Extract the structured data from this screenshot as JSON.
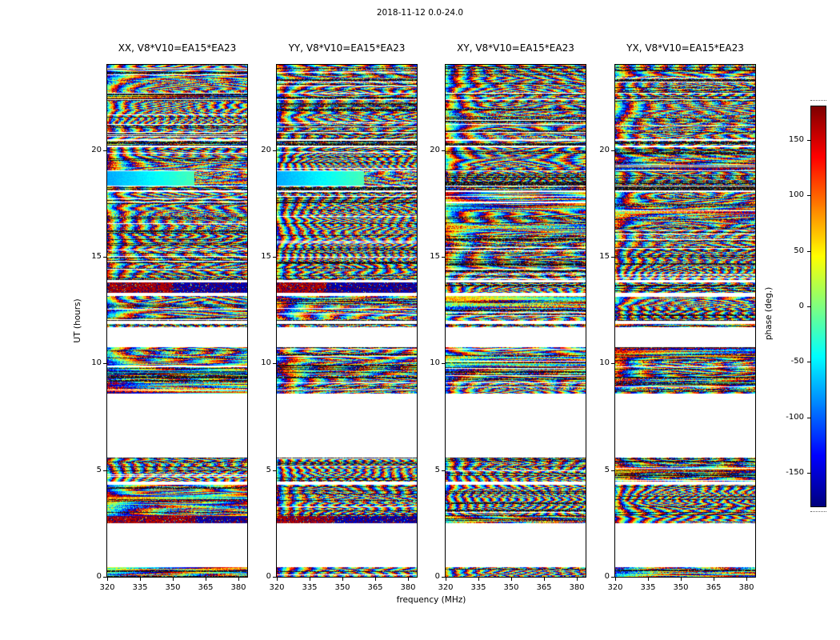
{
  "chart_data": {
    "type": "heatmap",
    "title": "2018-11-12 0.0-24.0",
    "panels": [
      {
        "label": "XX",
        "title": "XX, V8*V10=EA15*EA23"
      },
      {
        "label": "YY",
        "title": "YY, V8*V10=EA15*EA23"
      },
      {
        "label": "XY",
        "title": "XY, V8*V10=EA15*EA23"
      },
      {
        "label": "YX",
        "title": "YX, V8*V10=EA15*EA23"
      }
    ],
    "xlabel": "frequency (MHz)",
    "ylabel": "UT (hours)",
    "xlim": [
      320,
      384
    ],
    "ylim": [
      0,
      24
    ],
    "xticks": [
      320,
      335,
      350,
      365,
      380
    ],
    "yticks": [
      0,
      5,
      10,
      15,
      20
    ],
    "colorbar": {
      "label": "phase (deg.)",
      "ticks": [
        -150,
        -100,
        -50,
        0,
        50,
        100,
        150
      ],
      "vmin": -180,
      "vmax": 180,
      "colormap": "jet"
    },
    "bands": [
      {
        "t0": 0.0,
        "t1": 0.45,
        "style": "noise"
      },
      {
        "t0": 2.5,
        "t1": 2.85,
        "style": "intense",
        "styles": [
          "intense",
          "intense",
          "noise",
          "noise"
        ]
      },
      {
        "t0": 2.85,
        "t1": 4.3,
        "style": "noise"
      },
      {
        "t0": 4.45,
        "t1": 5.6,
        "style": "noise"
      },
      {
        "t0": 8.6,
        "t1": 10.75,
        "style": "noise"
      },
      {
        "t0": 11.7,
        "t1": 11.85,
        "style": "dark"
      },
      {
        "t0": 12.0,
        "t1": 13.15,
        "style": "noise"
      },
      {
        "t0": 13.3,
        "t1": 13.8,
        "style": "intense",
        "styles": [
          "intense",
          "intense",
          "noise",
          "noise"
        ]
      },
      {
        "t0": 13.9,
        "t1": 18.05,
        "style": "noise"
      },
      {
        "t0": 18.1,
        "t1": 18.3,
        "style": "dark"
      },
      {
        "t0": 18.35,
        "t1": 19.0,
        "style": "smooth",
        "styles": [
          "smooth",
          "smooth",
          "dark",
          "dark"
        ]
      },
      {
        "t0": 19.05,
        "t1": 20.15,
        "style": "noise"
      },
      {
        "t0": 20.2,
        "t1": 20.45,
        "style": "dark"
      },
      {
        "t0": 20.5,
        "t1": 22.35,
        "style": "noise"
      },
      {
        "t0": 22.4,
        "t1": 22.65,
        "style": "dark"
      },
      {
        "t0": 22.7,
        "t1": 24.0,
        "style": "noise"
      }
    ]
  }
}
